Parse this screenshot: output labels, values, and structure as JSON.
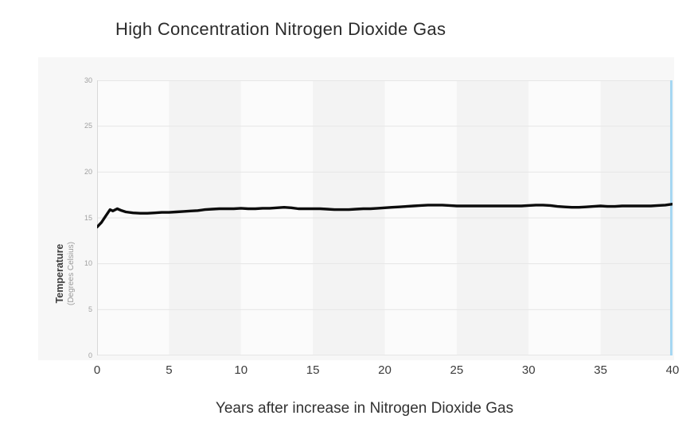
{
  "page": {
    "title": "High Concentration Nitrogen Dioxide Gas"
  },
  "colors": {
    "background": "#ffffff",
    "card_bg": "#f7f7f7",
    "band_light": "#fbfbfb",
    "band_dark": "#f3f3f3",
    "gridline": "#e6e6e6",
    "axis_line": "#d8d8d8",
    "series_line": "#0c0c0c",
    "end_marker_line": "#a6d7f2",
    "y_tick_text": "#a0a0a0",
    "x_tick_text": "#3c3c3c",
    "title_text": "#2b2b2b"
  },
  "chart_data": {
    "type": "line",
    "title": "High Concentration Nitrogen Dioxide Gas",
    "xlabel": "Years after increase in Nitrogen Dioxide Gas",
    "ylabel": "Temperature",
    "ylabel_sub": "(Degrees Celsius)",
    "xlim": [
      0,
      40
    ],
    "ylim": [
      0,
      30
    ],
    "x_ticks": [
      0,
      5,
      10,
      15,
      20,
      25,
      30,
      35,
      40
    ],
    "y_ticks": [
      0,
      5,
      10,
      15,
      20,
      25,
      30
    ],
    "grid": "horizontal gridlines with alternating vertical 5-year bands",
    "legend": "none",
    "series": [
      {
        "name": "Temperature",
        "color": "#0c0c0c",
        "x": [
          0,
          0.3,
          0.6,
          0.9,
          1.1,
          1.4,
          1.7,
          2,
          2.5,
          3,
          3.5,
          4,
          4.5,
          5,
          5.5,
          6,
          6.5,
          7,
          7.5,
          8,
          8.5,
          9,
          9.5,
          10,
          10.5,
          11,
          11.5,
          12,
          12.5,
          13,
          13.5,
          14,
          14.5,
          15,
          15.5,
          16,
          16.5,
          17,
          17.5,
          18,
          18.5,
          19,
          19.5,
          20,
          20.5,
          21,
          21.5,
          22,
          22.5,
          23,
          23.5,
          24,
          24.5,
          25,
          25.5,
          26,
          26.5,
          27,
          27.5,
          28,
          28.5,
          29,
          29.5,
          30,
          30.5,
          31,
          31.5,
          32,
          32.5,
          33,
          33.5,
          34,
          34.5,
          35,
          35.5,
          36,
          36.5,
          37,
          37.5,
          38,
          38.5,
          39,
          39.5,
          40
        ],
        "y": [
          14.0,
          14.5,
          15.2,
          15.9,
          15.75,
          16.0,
          15.8,
          15.65,
          15.55,
          15.5,
          15.5,
          15.55,
          15.6,
          15.6,
          15.65,
          15.7,
          15.75,
          15.8,
          15.9,
          15.95,
          16.0,
          16.0,
          16.0,
          16.05,
          16.0,
          16.0,
          16.05,
          16.05,
          16.1,
          16.15,
          16.1,
          16.0,
          16.0,
          16.0,
          16.0,
          15.95,
          15.9,
          15.9,
          15.9,
          15.95,
          16.0,
          16.0,
          16.05,
          16.1,
          16.15,
          16.2,
          16.25,
          16.3,
          16.35,
          16.4,
          16.4,
          16.4,
          16.35,
          16.3,
          16.3,
          16.3,
          16.3,
          16.3,
          16.3,
          16.3,
          16.3,
          16.3,
          16.3,
          16.35,
          16.4,
          16.4,
          16.35,
          16.25,
          16.2,
          16.15,
          16.15,
          16.2,
          16.25,
          16.3,
          16.25,
          16.25,
          16.3,
          16.3,
          16.3,
          16.3,
          16.3,
          16.35,
          16.4,
          16.5
        ]
      }
    ],
    "annotations": [
      {
        "type": "vline",
        "x": 40,
        "color": "#a6d7f2",
        "note": "light blue marker line at right edge of plot"
      }
    ]
  }
}
